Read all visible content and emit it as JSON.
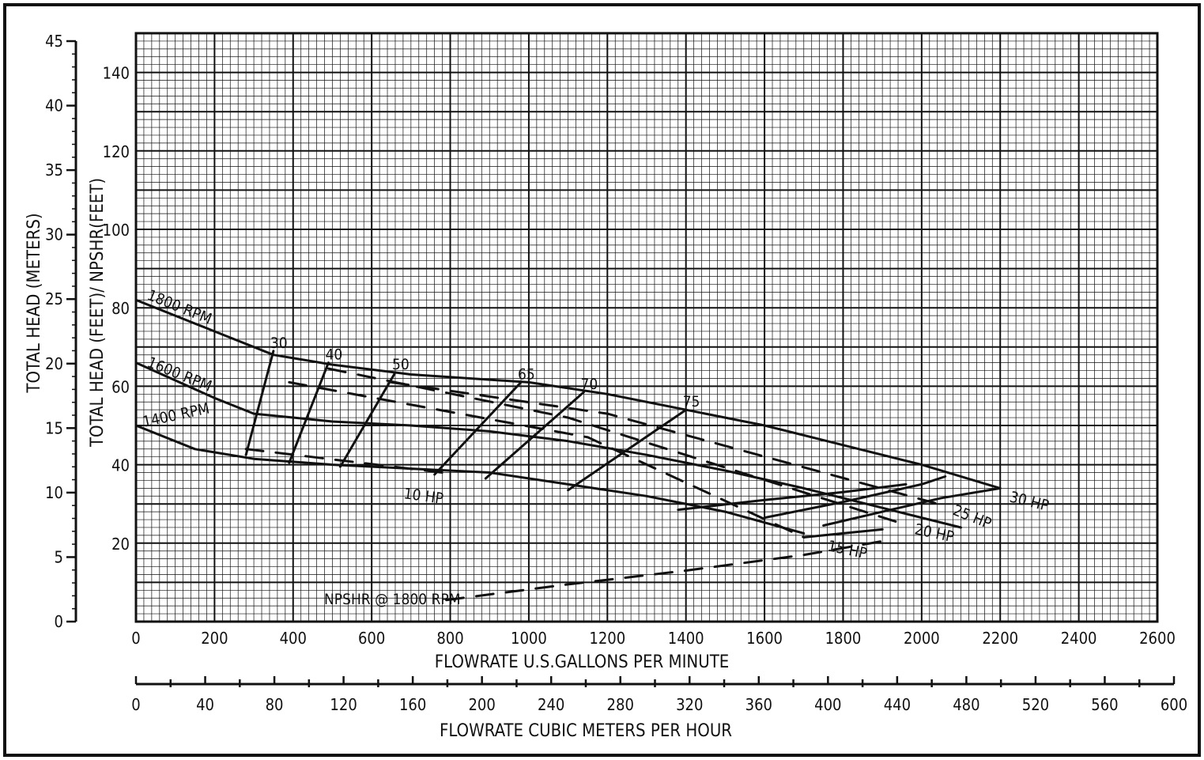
{
  "chart_data": {
    "type": "line",
    "title": "",
    "xlabel": "FLOWRATE U.S.GALLONS PER MINUTE",
    "x2label": "FLOWRATE CUBIC METERS PER HOUR",
    "ylabel_left": "TOTAL HEAD (METERS)",
    "ylabel_inner": "TOTAL HEAD (FEET)/ NPSHR(FEET)",
    "xlim": [
      0,
      2600
    ],
    "x2lim": [
      0,
      600
    ],
    "ylim_feet": [
      0,
      150
    ],
    "ylim_meters": [
      0,
      45
    ],
    "x_ticks": [
      0,
      200,
      400,
      600,
      800,
      1000,
      1200,
      1400,
      1600,
      1800,
      2000,
      2200,
      2400,
      2600
    ],
    "x2_ticks": [
      0,
      40,
      80,
      120,
      160,
      200,
      240,
      280,
      320,
      360,
      400,
      440,
      480,
      520,
      560,
      600
    ],
    "y_feet_ticks": [
      20,
      40,
      60,
      80,
      100,
      120,
      140
    ],
    "y_meter_ticks": [
      0,
      5,
      10,
      15,
      20,
      25,
      30,
      35,
      40,
      45
    ],
    "grid": true,
    "series": [
      {
        "name": "1800 RPM",
        "style": "solid",
        "x": [
          0,
          200,
          350,
          500,
          700,
          1000,
          1200,
          1400,
          1600,
          1800,
          2000,
          2200
        ],
        "y": [
          82,
          74,
          68,
          65.5,
          63,
          61,
          58,
          54,
          50,
          45,
          40,
          34
        ]
      },
      {
        "name": "1600 RPM",
        "style": "solid",
        "x": [
          0,
          200,
          300,
          500,
          700,
          900,
          1100,
          1300,
          1500,
          1700,
          1900,
          2100
        ],
        "y": [
          66,
          57,
          53,
          51,
          50,
          48.5,
          46,
          42.5,
          38.5,
          34,
          29,
          24
        ]
      },
      {
        "name": "1400 RPM",
        "style": "solid",
        "x": [
          0,
          150,
          300,
          500,
          700,
          900,
          1100,
          1300,
          1500,
          1700
        ],
        "y": [
          50,
          44,
          41.5,
          40,
          39,
          38,
          35,
          32,
          28,
          22.5
        ]
      },
      {
        "name": "NPSHR @ 1800 RPM",
        "style": "dashed",
        "x": [
          790,
          1100,
          1400,
          1700,
          1900
        ],
        "y": [
          5.5,
          9.5,
          13,
          17,
          20.5
        ]
      }
    ],
    "efficiency_lines": [
      {
        "label": "30",
        "x": [
          280,
          350
        ],
        "y": [
          42.5,
          69
        ]
      },
      {
        "label": "40",
        "x": [
          390,
          490
        ],
        "y": [
          40.5,
          66
        ]
      },
      {
        "label": "50",
        "x": [
          520,
          660
        ],
        "y": [
          39.5,
          63.5
        ]
      },
      {
        "label": "65",
        "x": [
          760,
          980
        ],
        "y": [
          37.5,
          61
        ]
      },
      {
        "label": "70",
        "x": [
          890,
          1140
        ],
        "y": [
          36.5,
          58.5
        ]
      },
      {
        "label": "75",
        "x": [
          1100,
          1400
        ],
        "y": [
          33.5,
          54
        ]
      }
    ],
    "hp_lines": [
      {
        "label": "10 HP",
        "x": [
          280,
          780
        ],
        "y": [
          44,
          38
        ]
      },
      {
        "label": "15 HP",
        "x": [
          390,
          1150,
          1700
        ],
        "y": [
          61,
          47,
          21.5
        ]
      },
      {
        "label": "20 HP",
        "x": [
          490,
          1100,
          1950
        ],
        "y": [
          64.5,
          52,
          25
        ]
      },
      {
        "label": "25 HP",
        "x": [
          650,
          1200,
          2060
        ],
        "y": [
          61,
          53,
          29.5
        ]
      }
    ],
    "hp_curves": [
      {
        "label": "15 HP",
        "x": [
          1700,
          1800,
          1900
        ],
        "y": [
          21.5,
          22.5,
          23.5
        ]
      },
      {
        "label": "20 HP",
        "x": [
          1380,
          1600,
          1800,
          1960
        ],
        "y": [
          28.5,
          31,
          33,
          35
        ]
      },
      {
        "label": "25 HP",
        "x": [
          1600,
          1800,
          2000,
          2060
        ],
        "y": [
          26.5,
          30.5,
          35,
          37
        ]
      },
      {
        "label": "30 HP",
        "x": [
          1750,
          1900,
          2050,
          2200
        ],
        "y": [
          24.5,
          28,
          31.5,
          34
        ]
      }
    ],
    "annotations": {
      "hp_10": "10 HP",
      "hp_15": "15 HP",
      "hp_20": "20 HP",
      "hp_25": "25 HP",
      "hp_30": "30 HP",
      "rpm_1800": "1800 RPM",
      "rpm_1600": "1600 RPM",
      "rpm_1400": "1400 RPM",
      "npshr": "NPSHR @ 1800 RPM"
    }
  }
}
